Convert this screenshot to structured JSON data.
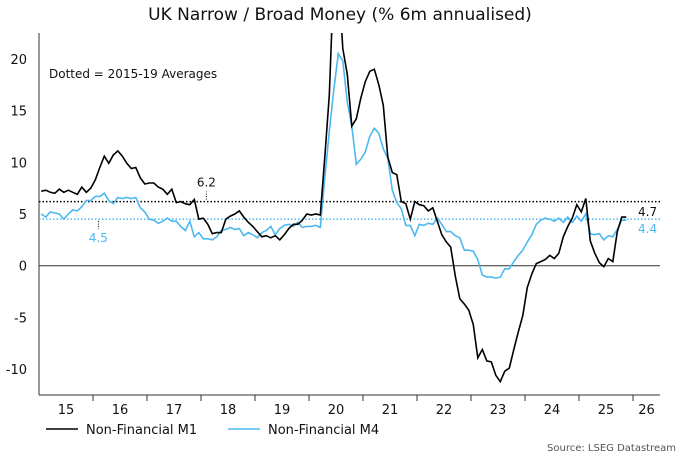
{
  "chart_data": {
    "type": "line",
    "title": "UK Narrow / Broad Money (% 6m annualised)",
    "annotation": "Dotted = 2015-19 Averages",
    "source": "Source: LSEG Datastream",
    "x_start": "2015-01",
    "frequency": "monthly",
    "xlim": [
      2015,
      2026.5
    ],
    "ylim": [
      -12.5,
      22.5
    ],
    "yticks": [
      -10,
      -5,
      0,
      5,
      10,
      15,
      20
    ],
    "xtick_labels": [
      "15",
      "16",
      "17",
      "18",
      "19",
      "20",
      "21",
      "22",
      "23",
      "24",
      "25",
      "26"
    ],
    "grid": false,
    "legend": "bottom-left",
    "series": [
      {
        "name": "Non-Financial M1",
        "color": "#000000",
        "average": 6.2,
        "average_label": "6.2",
        "end_label": "4.7",
        "values": [
          7.2,
          7.3,
          7.1,
          7.0,
          7.4,
          7.1,
          7.3,
          7.1,
          6.9,
          7.6,
          7.1,
          7.5,
          8.3,
          9.5,
          10.6,
          9.9,
          10.7,
          11.1,
          10.6,
          9.9,
          9.4,
          9.5,
          8.5,
          7.9,
          8.0,
          8.0,
          7.6,
          7.4,
          6.9,
          7.4,
          6.1,
          6.2,
          6.0,
          5.9,
          6.4,
          4.5,
          4.6,
          4.0,
          3.1,
          3.2,
          3.2,
          4.5,
          4.8,
          5.0,
          5.3,
          4.7,
          4.2,
          3.8,
          3.3,
          2.8,
          2.9,
          2.7,
          2.9,
          2.5,
          3.0,
          3.6,
          4.0,
          4.0,
          4.4,
          5.0,
          4.9,
          5.0,
          4.9,
          10.5,
          16.5,
          28,
          28,
          21,
          18.5,
          13.5,
          14.2,
          16.2,
          17.8,
          18.8,
          19,
          17.5,
          15.5,
          10.5,
          9,
          8.8,
          6.2,
          6.0,
          4.5,
          6.2,
          5.9,
          5.8,
          5.3,
          5.6,
          4.3,
          3.0,
          2.3,
          1.8,
          -1.0,
          -3.2,
          -3.7,
          -4.3,
          -5.7,
          -8.9,
          -8.1,
          -9.2,
          -9.3,
          -10.6,
          -11.2,
          -10.2,
          -9.9,
          -8.1,
          -6.4,
          -4.8,
          -2.1,
          -0.8,
          0.2,
          0.4,
          0.6,
          1.0,
          0.7,
          1.2,
          2.8,
          3.8,
          4.6,
          5.9,
          5.2,
          6.5,
          2.4,
          1.2,
          0.3,
          -0.1,
          0.7,
          0.4,
          3.3,
          4.7,
          4.7
        ]
      },
      {
        "name": "Non-Financial M4",
        "color": "#4db8f0",
        "average": 4.5,
        "average_label": "4.5",
        "end_label": "4.4",
        "values": [
          5.0,
          4.7,
          5.2,
          5.1,
          5.0,
          4.5,
          5.0,
          5.4,
          5.3,
          5.7,
          6.3,
          6.3,
          6.7,
          6.7,
          7.0,
          6.3,
          6.0,
          6.6,
          6.5,
          6.6,
          6.5,
          6.6,
          5.6,
          5.2,
          4.5,
          4.4,
          4.1,
          4.3,
          4.6,
          4.3,
          4.3,
          3.8,
          3.4,
          4.3,
          2.8,
          3.2,
          2.6,
          2.6,
          2.5,
          2.8,
          3.4,
          3.5,
          3.7,
          3.5,
          3.6,
          2.9,
          3.2,
          3.0,
          2.7,
          3.2,
          3.4,
          3.8,
          3.0,
          3.6,
          3.9,
          4.0,
          3.8,
          4.2,
          3.7,
          3.8,
          3.8,
          3.9,
          3.7,
          8.5,
          13,
          17,
          20.5,
          19.8,
          15.8,
          13.5,
          9.8,
          10.3,
          11,
          12.5,
          13.3,
          12.8,
          11.3,
          10.4,
          7.3,
          6.1,
          5.5,
          3.9,
          3.9,
          2.9,
          4.0,
          3.9,
          4.1,
          4.0,
          4.6,
          4.0,
          3.3,
          3.3,
          2.9,
          2.7,
          1.5,
          1.5,
          1.4,
          0.6,
          -0.9,
          -1.1,
          -1.1,
          -1.2,
          -1.1,
          -0.3,
          -0.3,
          0.4,
          1.0,
          1.5,
          2.3,
          3.0,
          4.0,
          4.4,
          4.6,
          4.5,
          4.3,
          4.6,
          4.2,
          4.7,
          4.2,
          4.8,
          4.3,
          5.0,
          3.1,
          3.0,
          3.1,
          2.5,
          2.9,
          2.8,
          3.5,
          4.4,
          4.4
        ]
      }
    ]
  }
}
